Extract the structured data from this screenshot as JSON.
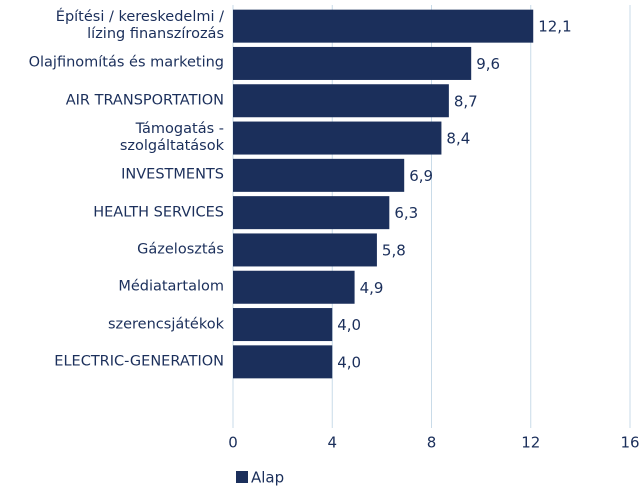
{
  "chart_data": {
    "type": "bar",
    "orientation": "horizontal",
    "categories": [
      "Építési / kereskedelmi /\nlízing finanszírozás",
      "Olajfinomítás és marketing",
      "AIR TRANSPORTATION",
      "Támogatás -\nszolgáltatások",
      "INVESTMENTS",
      "HEALTH SERVICES",
      "Gázelosztás",
      "Médiatartalom",
      "szerencsjátékok",
      "ELECTRIC-GENERATION"
    ],
    "series": [
      {
        "name": "Alap",
        "color": "#1b2f5b",
        "values": [
          12.1,
          9.6,
          8.7,
          8.4,
          6.9,
          6.3,
          5.8,
          4.9,
          4.0,
          4.0
        ],
        "value_labels": [
          "12,1",
          "9,6",
          "8,7",
          "8,4",
          "6,9",
          "6,3",
          "5,8",
          "4,9",
          "4,0",
          "4,0"
        ]
      }
    ],
    "xlim": [
      0,
      16
    ],
    "xticks": [
      0,
      4,
      8,
      12,
      16
    ],
    "grid": true,
    "legend": "bottom-left"
  }
}
